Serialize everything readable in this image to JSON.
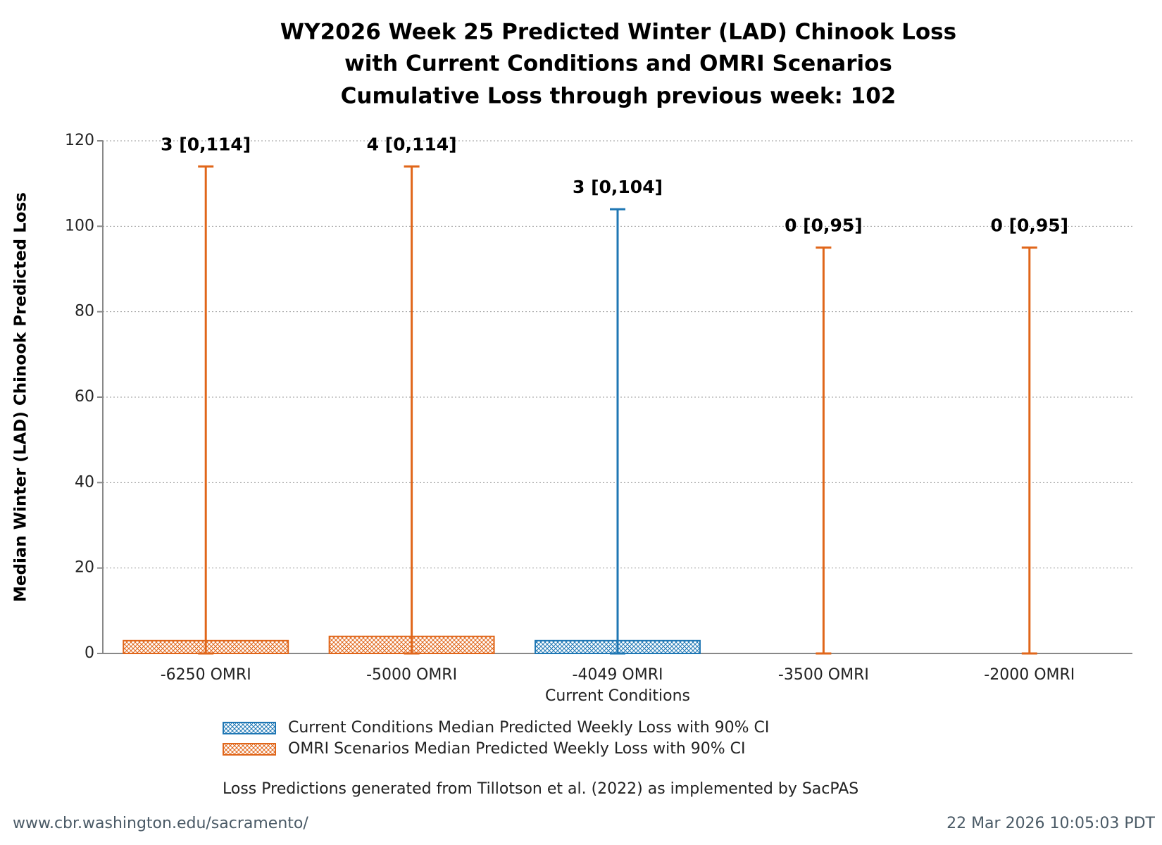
{
  "chart_data": {
    "type": "bar",
    "title": [
      "WY2026 Week 25 Predicted Winter (LAD) Chinook Loss",
      "with Current Conditions and OMRI Scenarios",
      "Cumulative Loss through previous week: 102"
    ],
    "xlabel": "Current Conditions",
    "ylabel": "Median Winter (LAD) Chinook Predicted Loss",
    "categories": [
      "-6250 OMRI",
      "-5000 OMRI",
      "-4049 OMRI",
      "-3500 OMRI",
      "-2000 OMRI"
    ],
    "series": [
      {
        "name": "Current Conditions Median Predicted Weekly Loss with 90% CI",
        "color": "#1f77b4",
        "values": [
          null,
          null,
          3,
          null,
          null
        ],
        "lower": [
          null,
          null,
          0,
          null,
          null
        ],
        "upper": [
          null,
          null,
          104,
          null,
          null
        ],
        "value_labels": [
          null,
          null,
          "3 [0,104]",
          null,
          null
        ]
      },
      {
        "name": "OMRI Scenarios Median Predicted Weekly Loss with 90% CI",
        "color": "#e0661a",
        "values": [
          3,
          4,
          null,
          0,
          0
        ],
        "lower": [
          0,
          0,
          null,
          0,
          0
        ],
        "upper": [
          114,
          114,
          null,
          95,
          95
        ],
        "value_labels": [
          "3 [0,114]",
          "4 [0,114]",
          null,
          "0 [0,95]",
          "0 [0,95]"
        ]
      }
    ],
    "ylim": [
      0,
      120
    ],
    "yticks": [
      0,
      20,
      40,
      60,
      80,
      100,
      120
    ],
    "grid": true,
    "note": "Loss Predictions generated from Tillotson et al. (2022) as implemented by SacPAS",
    "footer_left": "www.cbr.washington.edu/sacramento/",
    "footer_right": "22 Mar 2026 10:05:03 PDT"
  }
}
